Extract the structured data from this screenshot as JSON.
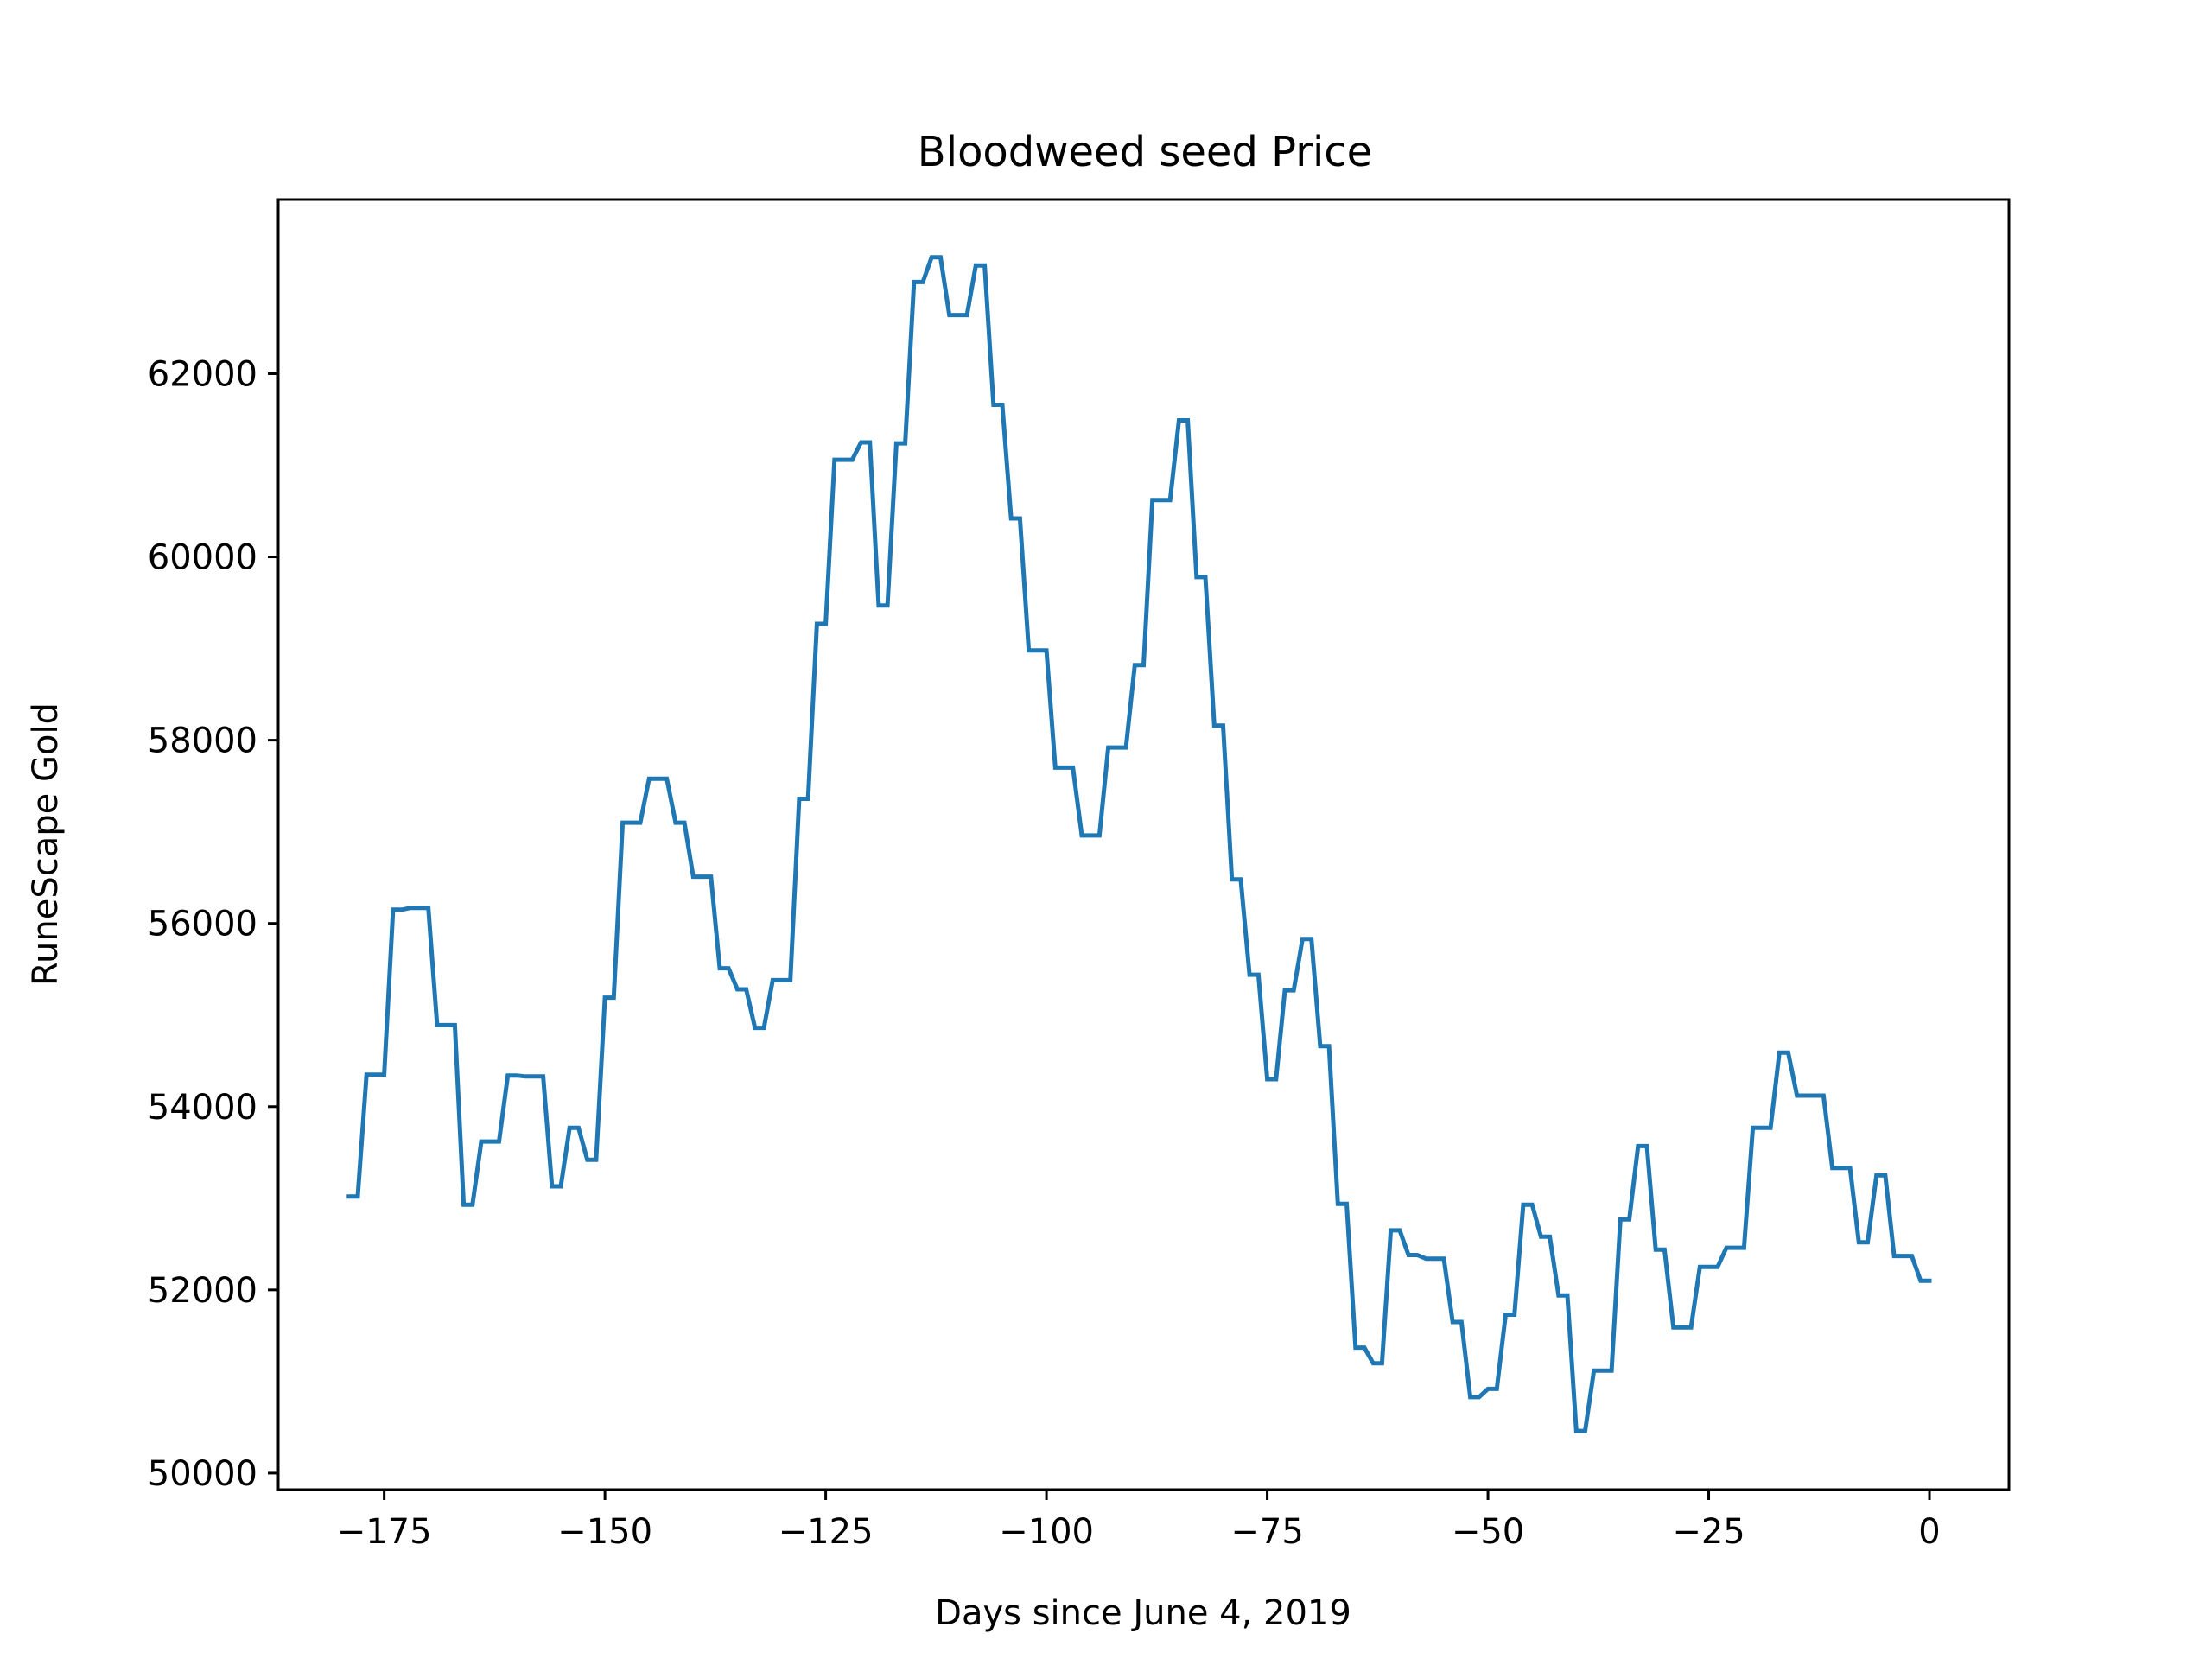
{
  "chart_data": {
    "type": "line",
    "title": "Bloodweed seed Price",
    "xlabel": "Days since June 4, 2019",
    "ylabel": "RuneScape Gold",
    "xlim": [
      -187,
      9
    ],
    "ylim": [
      49820,
      63900
    ],
    "xticks": [
      -175,
      -150,
      -125,
      -100,
      -75,
      -50,
      -25,
      0
    ],
    "xtick_labels": [
      "−175",
      "−150",
      "−125",
      "−100",
      "−75",
      "−50",
      "−25",
      "0"
    ],
    "yticks": [
      50000,
      52000,
      54000,
      56000,
      58000,
      60000,
      62000
    ],
    "ytick_labels": [
      "50000",
      "52000",
      "54000",
      "56000",
      "58000",
      "60000",
      "62000"
    ],
    "grid": false,
    "legend": "none",
    "series": [
      {
        "color": "#1f77b4",
        "x": [
          -179,
          -178,
          -177,
          -176,
          -175,
          -174,
          -173,
          -172,
          -171,
          -170,
          -169,
          -168,
          -167,
          -166,
          -165,
          -164,
          -163,
          -162,
          -161,
          -160,
          -159,
          -158,
          -157,
          -156,
          -155,
          -154,
          -153,
          -152,
          -151,
          -150,
          -149,
          -148,
          -147,
          -146,
          -145,
          -144,
          -143,
          -142,
          -141,
          -140,
          -139,
          -138,
          -137,
          -136,
          -135,
          -134,
          -133,
          -132,
          -131,
          -130,
          -129,
          -128,
          -127,
          -126,
          -125,
          -124,
          -123,
          -122,
          -121,
          -120,
          -119,
          -118,
          -117,
          -116,
          -115,
          -114,
          -113,
          -112,
          -111,
          -110,
          -109,
          -108,
          -107,
          -106,
          -105,
          -104,
          -103,
          -102,
          -101,
          -100,
          -99,
          -98,
          -97,
          -96,
          -95,
          -94,
          -93,
          -92,
          -91,
          -90,
          -89,
          -88,
          -87,
          -86,
          -85,
          -84,
          -83,
          -82,
          -81,
          -80,
          -79,
          -78,
          -77,
          -76,
          -75,
          -74,
          -73,
          -72,
          -71,
          -70,
          -69,
          -68,
          -67,
          -66,
          -65,
          -64,
          -63,
          -62,
          -61,
          -60,
          -59,
          -58,
          -57,
          -56,
          -55,
          -54,
          -53,
          -52,
          -51,
          -50,
          -49,
          -48,
          -47,
          -46,
          -45,
          -44,
          -43,
          -42,
          -41,
          -40,
          -39,
          -38,
          -37,
          -36,
          -35,
          -34,
          -33,
          -32,
          -31,
          -30,
          -29,
          -28,
          -27,
          -26,
          -25,
          -24,
          -23,
          -22,
          -21,
          -20,
          -19,
          -18,
          -17,
          -16,
          -15,
          -14,
          -13,
          -12,
          -11,
          -10,
          -9,
          -8,
          -7,
          -6,
          -5,
          -4,
          -3,
          -2,
          -1,
          0
        ],
        "y": [
          53020,
          53020,
          54350,
          54350,
          54350,
          56150,
          56150,
          56170,
          56170,
          56170,
          54890,
          54890,
          54890,
          52930,
          52930,
          53620,
          53620,
          53620,
          54340,
          54340,
          54330,
          54330,
          54330,
          53130,
          53130,
          53770,
          53770,
          53420,
          53420,
          55190,
          55190,
          57100,
          57100,
          57100,
          57580,
          57580,
          57580,
          57100,
          57100,
          56510,
          56510,
          56510,
          55510,
          55510,
          55280,
          55280,
          54860,
          54860,
          55380,
          55380,
          55380,
          57360,
          57360,
          59270,
          59270,
          61060,
          61060,
          61060,
          61250,
          61250,
          59470,
          59470,
          61240,
          61240,
          63000,
          63000,
          63270,
          63270,
          62640,
          62640,
          62640,
          63180,
          63180,
          61660,
          61660,
          60420,
          60420,
          58980,
          58980,
          58980,
          57700,
          57700,
          57700,
          56960,
          56960,
          56960,
          57920,
          57920,
          57920,
          58820,
          58820,
          60620,
          60620,
          60620,
          61490,
          61490,
          59780,
          59780,
          58160,
          58160,
          56480,
          56480,
          55440,
          55440,
          54300,
          54300,
          55270,
          55270,
          55830,
          55830,
          54660,
          54660,
          52940,
          52940,
          51370,
          51370,
          51200,
          51200,
          52650,
          52650,
          52380,
          52380,
          52340,
          52340,
          52340,
          51650,
          51650,
          50830,
          50830,
          50920,
          50920,
          51730,
          51730,
          52930,
          52930,
          52580,
          52580,
          51940,
          51940,
          50460,
          50460,
          51120,
          51120,
          51120,
          52770,
          52770,
          53570,
          53570,
          52440,
          52440,
          51590,
          51590,
          51590,
          52250,
          52250,
          52250,
          52460,
          52460,
          52460,
          53770,
          53770,
          53770,
          54590,
          54590,
          54120,
          54120,
          54120,
          54120,
          53330,
          53330,
          53330,
          52520,
          52520,
          53250,
          53250,
          52370,
          52370,
          52370,
          52100,
          52100
        ]
      }
    ]
  }
}
